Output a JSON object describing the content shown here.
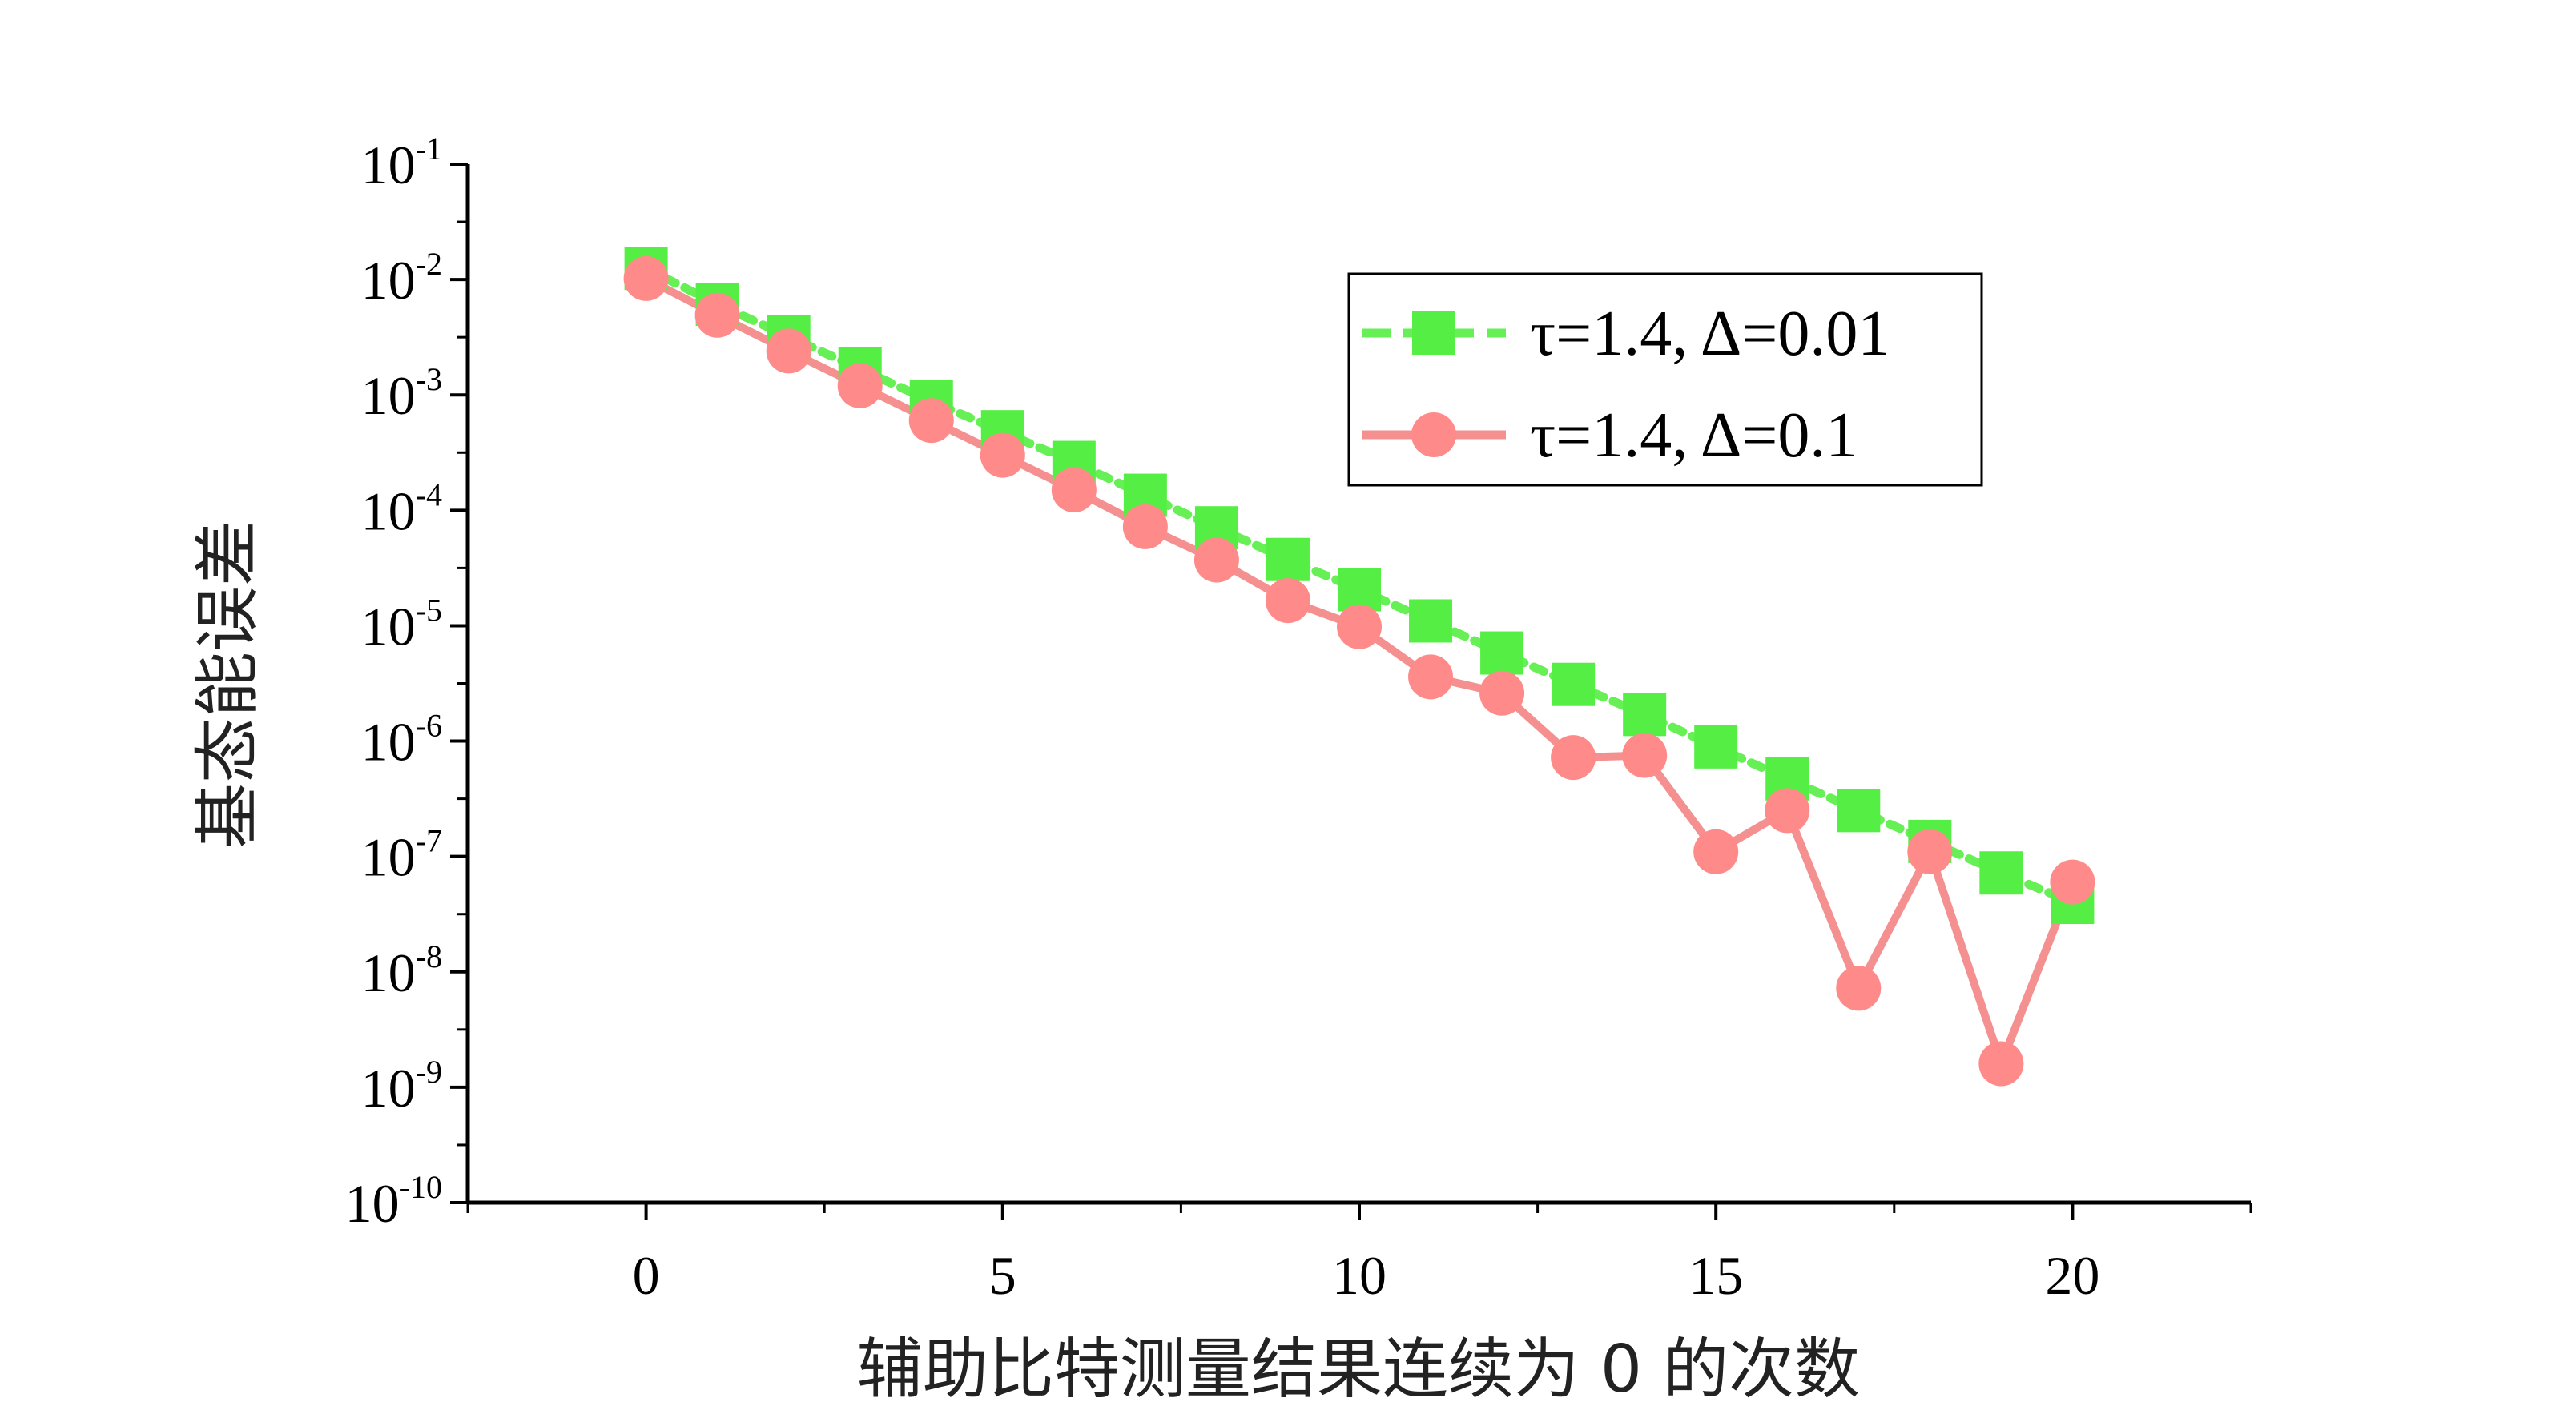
{
  "chart_data": {
    "type": "line",
    "xlabel": "辅助比特测量结果连续为 0 的次数",
    "ylabel": "基态能误差",
    "xlim": [
      -2.5,
      22.5
    ],
    "xticks": [
      0,
      5,
      10,
      15,
      20
    ],
    "x_tick_labels": [
      "0",
      "5",
      "10",
      "15",
      "20"
    ],
    "ylim": [
      -10,
      -1
    ],
    "y_scale": "log",
    "yticks": [
      {
        "base": "10",
        "exp": "-1"
      },
      {
        "base": "10",
        "exp": "-2"
      },
      {
        "base": "10",
        "exp": "-3"
      },
      {
        "base": "10",
        "exp": "-4"
      },
      {
        "base": "10",
        "exp": "-5"
      },
      {
        "base": "10",
        "exp": "-6"
      },
      {
        "base": "10",
        "exp": "-7"
      },
      {
        "base": "10",
        "exp": "-8"
      },
      {
        "base": "10",
        "exp": "-9"
      },
      {
        "base": "10",
        "exp": "-10"
      }
    ],
    "grid": false,
    "legend_position": "top-right",
    "x": [
      0,
      1,
      2,
      3,
      4,
      5,
      6,
      7,
      8,
      9,
      10,
      11,
      12,
      13,
      14,
      15,
      16,
      17,
      18,
      19,
      20
    ],
    "series": [
      {
        "name": "τ=1.4, Δ=0.01",
        "marker": "square",
        "line_style": "dotted",
        "color": "#55ee44",
        "line_color": "#66f055",
        "values": [
          0.0125,
          0.0061,
          0.0032,
          0.00168,
          0.00088,
          0.00048,
          0.00026,
          0.000135,
          7.05e-05,
          3.75e-05,
          2.05e-05,
          1.1e-05,
          5.8e-06,
          3.1e-06,
          1.7e-06,
          8.9e-07,
          4.7e-07,
          2.5e-07,
          1.35e-07,
          7.2e-08,
          4e-08
        ]
      },
      {
        "name": "τ=1.4, Δ=0.1",
        "marker": "circle",
        "line_style": "solid",
        "color": "#ff8a8a",
        "line_color": "#f59090",
        "values": [
          0.0102,
          0.0049,
          0.0024,
          0.0012,
          0.0006,
          0.0003,
          0.00015,
          7.2e-05,
          3.7e-05,
          1.65e-05,
          9.8e-06,
          3.6e-06,
          2.6e-06,
          7.2e-07,
          7.5e-07,
          1.1e-07,
          2.5e-07,
          7.2e-09,
          1.1e-07,
          1.6e-09,
          6e-08
        ]
      }
    ]
  }
}
